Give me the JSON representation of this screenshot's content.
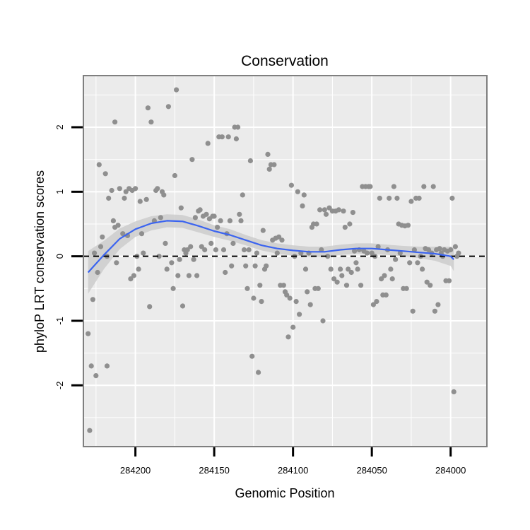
{
  "chart_data": {
    "type": "scatter",
    "title": "Conservation",
    "xlabel": "Genomic Position",
    "ylabel": "phyloP LRT conservation scores",
    "x_reversed": true,
    "xlim": [
      284233,
      283977
    ],
    "ylim": [
      -2.95,
      2.8
    ],
    "x_ticks": [
      284200,
      284150,
      284100,
      284050,
      284000
    ],
    "x_tick_labels": [
      "284200",
      "284150",
      "284100",
      "284050",
      "284000"
    ],
    "y_ticks": [
      -2,
      -1,
      0,
      1,
      2
    ],
    "y_tick_labels": [
      "-2",
      "-1",
      "0",
      "1",
      "2"
    ],
    "reference_line": {
      "y": 0,
      "style": "dashed"
    },
    "grid": true,
    "colors": {
      "points": "#8f8f8f",
      "smooth_line": "#3b64f0",
      "ribbon": "#cccccc",
      "panel": "#ebebeb",
      "grid": "#ffffff"
    },
    "points": [
      [
        284230,
        -1.2
      ],
      [
        284229,
        -2.7
      ],
      [
        284228,
        -1.7
      ],
      [
        284227,
        -0.67
      ],
      [
        284226,
        0.05
      ],
      [
        284225,
        -1.85
      ],
      [
        284224,
        -0.25
      ],
      [
        284223,
        1.42
      ],
      [
        284222,
        0.15
      ],
      [
        284221,
        0.3
      ],
      [
        284219,
        1.28
      ],
      [
        284218,
        -1.7
      ],
      [
        284218,
        0.0
      ],
      [
        284217,
        0.9
      ],
      [
        284215,
        1.02
      ],
      [
        284214,
        0.55
      ],
      [
        284213,
        2.08
      ],
      [
        284213,
        0.45
      ],
      [
        284212,
        -0.1
      ],
      [
        284211,
        0.48
      ],
      [
        284210,
        1.05
      ],
      [
        284208,
        0.35
      ],
      [
        284207,
        0.9
      ],
      [
        284206,
        1.0
      ],
      [
        284205,
        0.32
      ],
      [
        284204,
        1.05
      ],
      [
        284203,
        -0.35
      ],
      [
        284202,
        1.02
      ],
      [
        284201,
        -0.3
      ],
      [
        284200,
        1.05
      ],
      [
        284199,
        0.0
      ],
      [
        284198,
        -0.2
      ],
      [
        284197,
        0.85
      ],
      [
        284196,
        0.35
      ],
      [
        284195,
        0.05
      ],
      [
        284193,
        0.88
      ],
      [
        284192,
        2.3
      ],
      [
        284191,
        -0.78
      ],
      [
        284190,
        2.08
      ],
      [
        284188,
        0.55
      ],
      [
        284187,
        1.02
      ],
      [
        284186,
        1.05
      ],
      [
        284185,
        0.0
      ],
      [
        284184,
        0.6
      ],
      [
        284183,
        1.0
      ],
      [
        284182,
        0.95
      ],
      [
        284181,
        0.2
      ],
      [
        284180,
        -0.2
      ],
      [
        284179,
        2.32
      ],
      [
        284177,
        -0.1
      ],
      [
        284176,
        -0.5
      ],
      [
        284175,
        1.25
      ],
      [
        284174,
        2.58
      ],
      [
        284173,
        -0.3
      ],
      [
        284172,
        -0.05
      ],
      [
        284171,
        0.75
      ],
      [
        284170,
        -0.77
      ],
      [
        284169,
        0.1
      ],
      [
        284168,
        0.05
      ],
      [
        284167,
        0.1
      ],
      [
        284166,
        -0.3
      ],
      [
        284165,
        0.15
      ],
      [
        284164,
        1.5
      ],
      [
        284163,
        -0.05
      ],
      [
        284162,
        0.6
      ],
      [
        284161,
        -0.3
      ],
      [
        284160,
        0.7
      ],
      [
        284159,
        0.72
      ],
      [
        284158,
        0.15
      ],
      [
        284157,
        0.62
      ],
      [
        284156,
        0.1
      ],
      [
        284155,
        0.65
      ],
      [
        284154,
        1.75
      ],
      [
        284153,
        0.58
      ],
      [
        284152,
        0.2
      ],
      [
        284151,
        0.62
      ],
      [
        284150,
        0.62
      ],
      [
        284149,
        0.1
      ],
      [
        284148,
        0.45
      ],
      [
        284147,
        1.85
      ],
      [
        284146,
        0.55
      ],
      [
        284145,
        1.85
      ],
      [
        284144,
        0.1
      ],
      [
        284143,
        -0.25
      ],
      [
        284142,
        0.35
      ],
      [
        284141,
        1.85
      ],
      [
        284140,
        0.55
      ],
      [
        284139,
        -0.15
      ],
      [
        284138,
        0.2
      ],
      [
        284137,
        2.0
      ],
      [
        284136,
        1.82
      ],
      [
        284135,
        2.0
      ],
      [
        284134,
        0.65
      ],
      [
        284133,
        0.55
      ],
      [
        284132,
        0.95
      ],
      [
        284131,
        0.1
      ],
      [
        284130,
        -0.15
      ],
      [
        284129,
        -0.5
      ],
      [
        284128,
        0.1
      ],
      [
        284127,
        1.48
      ],
      [
        284126,
        -1.55
      ],
      [
        284125,
        -0.65
      ],
      [
        284124,
        -0.15
      ],
      [
        284123,
        0.05
      ],
      [
        284122,
        -1.8
      ],
      [
        284121,
        -0.45
      ],
      [
        284120,
        -0.7
      ],
      [
        284119,
        0.4
      ],
      [
        284118,
        -0.2
      ],
      [
        284117,
        -0.15
      ],
      [
        284116,
        1.58
      ],
      [
        284115,
        1.35
      ],
      [
        284114,
        1.42
      ],
      [
        284113,
        0.25
      ],
      [
        284112,
        1.42
      ],
      [
        284111,
        0.28
      ],
      [
        284110,
        0.05
      ],
      [
        284109,
        0.3
      ],
      [
        284108,
        -0.45
      ],
      [
        284107,
        0.25
      ],
      [
        284106,
        -0.45
      ],
      [
        284105,
        -0.55
      ],
      [
        284104,
        -0.6
      ],
      [
        284103,
        -1.25
      ],
      [
        284102,
        -0.65
      ],
      [
        284101,
        1.1
      ],
      [
        284100,
        -1.1
      ],
      [
        284099,
        0.0
      ],
      [
        284098,
        -0.7
      ],
      [
        284097,
        1.0
      ],
      [
        284096,
        -0.9
      ],
      [
        284095,
        0.05
      ],
      [
        284094,
        0.78
      ],
      [
        284093,
        0.95
      ],
      [
        284092,
        -0.2
      ],
      [
        284091,
        -0.55
      ],
      [
        284090,
        0.05
      ],
      [
        284089,
        -0.75
      ],
      [
        284088,
        0.45
      ],
      [
        284087,
        0.5
      ],
      [
        284086,
        -0.5
      ],
      [
        284085,
        0.5
      ],
      [
        284084,
        -0.5
      ],
      [
        284083,
        0.72
      ],
      [
        284082,
        0.1
      ],
      [
        284081,
        -1.0
      ],
      [
        284080,
        0.72
      ],
      [
        284079,
        0.65
      ],
      [
        284078,
        0.0
      ],
      [
        284077,
        0.75
      ],
      [
        284076,
        -0.2
      ],
      [
        284075,
        0.7
      ],
      [
        284074,
        -0.35
      ],
      [
        284073,
        0.7
      ],
      [
        284072,
        -0.4
      ],
      [
        284071,
        0.72
      ],
      [
        284070,
        -0.2
      ],
      [
        284069,
        -0.3
      ],
      [
        284068,
        0.7
      ],
      [
        284067,
        0.45
      ],
      [
        284066,
        -0.45
      ],
      [
        284065,
        -0.2
      ],
      [
        284064,
        0.5
      ],
      [
        284063,
        -0.25
      ],
      [
        284062,
        0.68
      ],
      [
        284061,
        0.08
      ],
      [
        284060,
        -0.1
      ],
      [
        284059,
        -0.2
      ],
      [
        284058,
        0.1
      ],
      [
        284057,
        -0.45
      ],
      [
        284056,
        1.08
      ],
      [
        284055,
        0.08
      ],
      [
        284054,
        1.08
      ],
      [
        284053,
        0.05
      ],
      [
        284052,
        1.08
      ],
      [
        284051,
        1.08
      ],
      [
        284050,
        0.05
      ],
      [
        284049,
        -0.75
      ],
      [
        284048,
        0.0
      ],
      [
        284047,
        -0.7
      ],
      [
        284046,
        0.15
      ],
      [
        284045,
        0.9
      ],
      [
        284044,
        -0.35
      ],
      [
        284043,
        -0.6
      ],
      [
        284042,
        -0.3
      ],
      [
        284041,
        -0.6
      ],
      [
        284040,
        0.1
      ],
      [
        284039,
        0.9
      ],
      [
        284038,
        -0.2
      ],
      [
        284037,
        -0.35
      ],
      [
        284036,
        1.08
      ],
      [
        284035,
        -0.05
      ],
      [
        284034,
        0.9
      ],
      [
        284033,
        0.5
      ],
      [
        284032,
        0.05
      ],
      [
        284031,
        0.48
      ],
      [
        284030,
        -0.5
      ],
      [
        284029,
        0.47
      ],
      [
        284028,
        -0.5
      ],
      [
        284027,
        0.48
      ],
      [
        284026,
        -0.1
      ],
      [
        284025,
        0.85
      ],
      [
        284024,
        -0.85
      ],
      [
        284023,
        0.1
      ],
      [
        284022,
        0.9
      ],
      [
        284021,
        -0.1
      ],
      [
        284020,
        0.9
      ],
      [
        284019,
        0.0
      ],
      [
        284018,
        -0.2
      ],
      [
        284017,
        1.08
      ],
      [
        284016,
        0.12
      ],
      [
        284015,
        -0.4
      ],
      [
        284014,
        0.1
      ],
      [
        284013,
        -0.45
      ],
      [
        284012,
        0.05
      ],
      [
        284011,
        1.08
      ],
      [
        284010,
        -0.85
      ],
      [
        284009,
        0.1
      ],
      [
        284008,
        -0.75
      ],
      [
        284007,
        0.12
      ],
      [
        284006,
        0.05
      ],
      [
        284005,
        0.0
      ],
      [
        284004,
        0.1
      ],
      [
        284003,
        -0.38
      ],
      [
        284002,
        0.08
      ],
      [
        284001,
        -0.38
      ],
      [
        284000,
        0.1
      ],
      [
        283999,
        0.9
      ],
      [
        283998,
        -2.1
      ],
      [
        283997,
        0.15
      ],
      [
        283996,
        0.0
      ],
      [
        283995,
        0.05
      ]
    ],
    "smooth": [
      [
        284230,
        -0.25
      ],
      [
        284220,
        0.02
      ],
      [
        284210,
        0.27
      ],
      [
        284200,
        0.42
      ],
      [
        284190,
        0.51
      ],
      [
        284180,
        0.55
      ],
      [
        284170,
        0.54
      ],
      [
        284160,
        0.47
      ],
      [
        284150,
        0.39
      ],
      [
        284140,
        0.33
      ],
      [
        284130,
        0.25
      ],
      [
        284120,
        0.17
      ],
      [
        284110,
        0.12
      ],
      [
        284100,
        0.09
      ],
      [
        284090,
        0.07
      ],
      [
        284080,
        0.07
      ],
      [
        284070,
        0.1
      ],
      [
        284060,
        0.12
      ],
      [
        284050,
        0.12
      ],
      [
        284040,
        0.1
      ],
      [
        284030,
        0.08
      ],
      [
        284020,
        0.06
      ],
      [
        284010,
        0.04
      ],
      [
        284000,
        0.0
      ],
      [
        283998,
        -0.05
      ]
    ],
    "ribbon_halfwidth": [
      [
        284230,
        0.33
      ],
      [
        284220,
        0.22
      ],
      [
        284210,
        0.16
      ],
      [
        284200,
        0.12
      ],
      [
        284190,
        0.11
      ],
      [
        284180,
        0.1
      ],
      [
        284170,
        0.1
      ],
      [
        284160,
        0.1
      ],
      [
        284150,
        0.09
      ],
      [
        284140,
        0.09
      ],
      [
        284130,
        0.08
      ],
      [
        284120,
        0.08
      ],
      [
        284110,
        0.08
      ],
      [
        284100,
        0.08
      ],
      [
        284090,
        0.08
      ],
      [
        284080,
        0.08
      ],
      [
        284070,
        0.08
      ],
      [
        284060,
        0.08
      ],
      [
        284050,
        0.08
      ],
      [
        284040,
        0.08
      ],
      [
        284030,
        0.08
      ],
      [
        284020,
        0.09
      ],
      [
        284010,
        0.11
      ],
      [
        284000,
        0.15
      ],
      [
        283998,
        0.18
      ]
    ]
  }
}
